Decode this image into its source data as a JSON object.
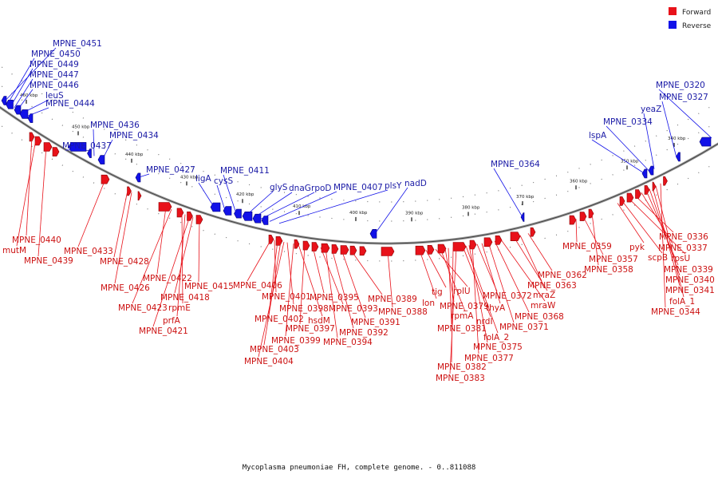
{
  "legend": [
    {
      "label": "Forward",
      "color": "#e8121a"
    },
    {
      "label": "Reverse",
      "color": "#1212e8"
    }
  ],
  "caption": "Mycoplasma pneumoniae FH, complete genome. - 0..811088",
  "ticks": [
    "340 kbp",
    "350 kbp",
    "360 kbp",
    "370 kbp",
    "380 kbp",
    "390 kbp",
    "400 kbp",
    "410 kbp",
    "420 kbp",
    "430 kbp",
    "440 kbp",
    "450 kbp",
    "460 kbp"
  ],
  "reverse_labels": [
    "MPNE_0451",
    "MPNE_0450",
    "MPNE_0449",
    "MPNE_0447",
    "MPNE_0446",
    "leuS",
    "MPNE_0444",
    "MPNE_0437",
    "MPNE_0436",
    "MPNE_0434",
    "MPNE_0427",
    "ligA",
    "cysS",
    "MPNE_0411",
    "glyS",
    "dnaG",
    "rpoD",
    "MPNE_0407",
    "plsY",
    "nadD",
    "MPNE_0364",
    "lspA",
    "MPNE_0334",
    "yeaZ",
    "MPNE_0327",
    "MPNE_0320"
  ],
  "forward_labels": [
    "MPNE_0440",
    "mutM",
    "MPNE_0439",
    "MPNE_0433",
    "MPNE_0428",
    "MPNE_0426",
    "MPNE_0422",
    "MPNE_0423",
    "rpmE",
    "prfA",
    "MPNE_0421",
    "MPNE_0418",
    "MPNE_0415",
    "MPNE_0406",
    "MPNE_0401",
    "MPNE_0402",
    "MPNE_0403",
    "MPNE_0404",
    "MPNE_0398",
    "MPNE_0399",
    "hsdM",
    "MPNE_0397",
    "MPNE_0395",
    "MPNE_0393",
    "MPNE_0394",
    "MPNE_0392",
    "MPNE_0391",
    "MPNE_0389",
    "MPNE_0388",
    "lon",
    "tig",
    "rplU",
    "rpmA",
    "MPNE_0379",
    "MPNE_0381",
    "MPNE_0382",
    "MPNE_0383",
    "nrdI",
    "folA_2",
    "MPNE_0375",
    "MPNE_0377",
    "MPNE_0372",
    "thyA",
    "MPNE_0371",
    "MPNE_0368",
    "mraW",
    "mraZ",
    "MPNE_0363",
    "MPNE_0362",
    "MPNE_0359",
    "MPNE_0357",
    "MPNE_0358",
    "pyk",
    "scpB",
    "rpsU",
    "MPNE_0336",
    "MPNE_0337",
    "MPNE_0339",
    "MPNE_0340",
    "MPNE_0341",
    "folA_1",
    "MPNE_0344"
  ]
}
